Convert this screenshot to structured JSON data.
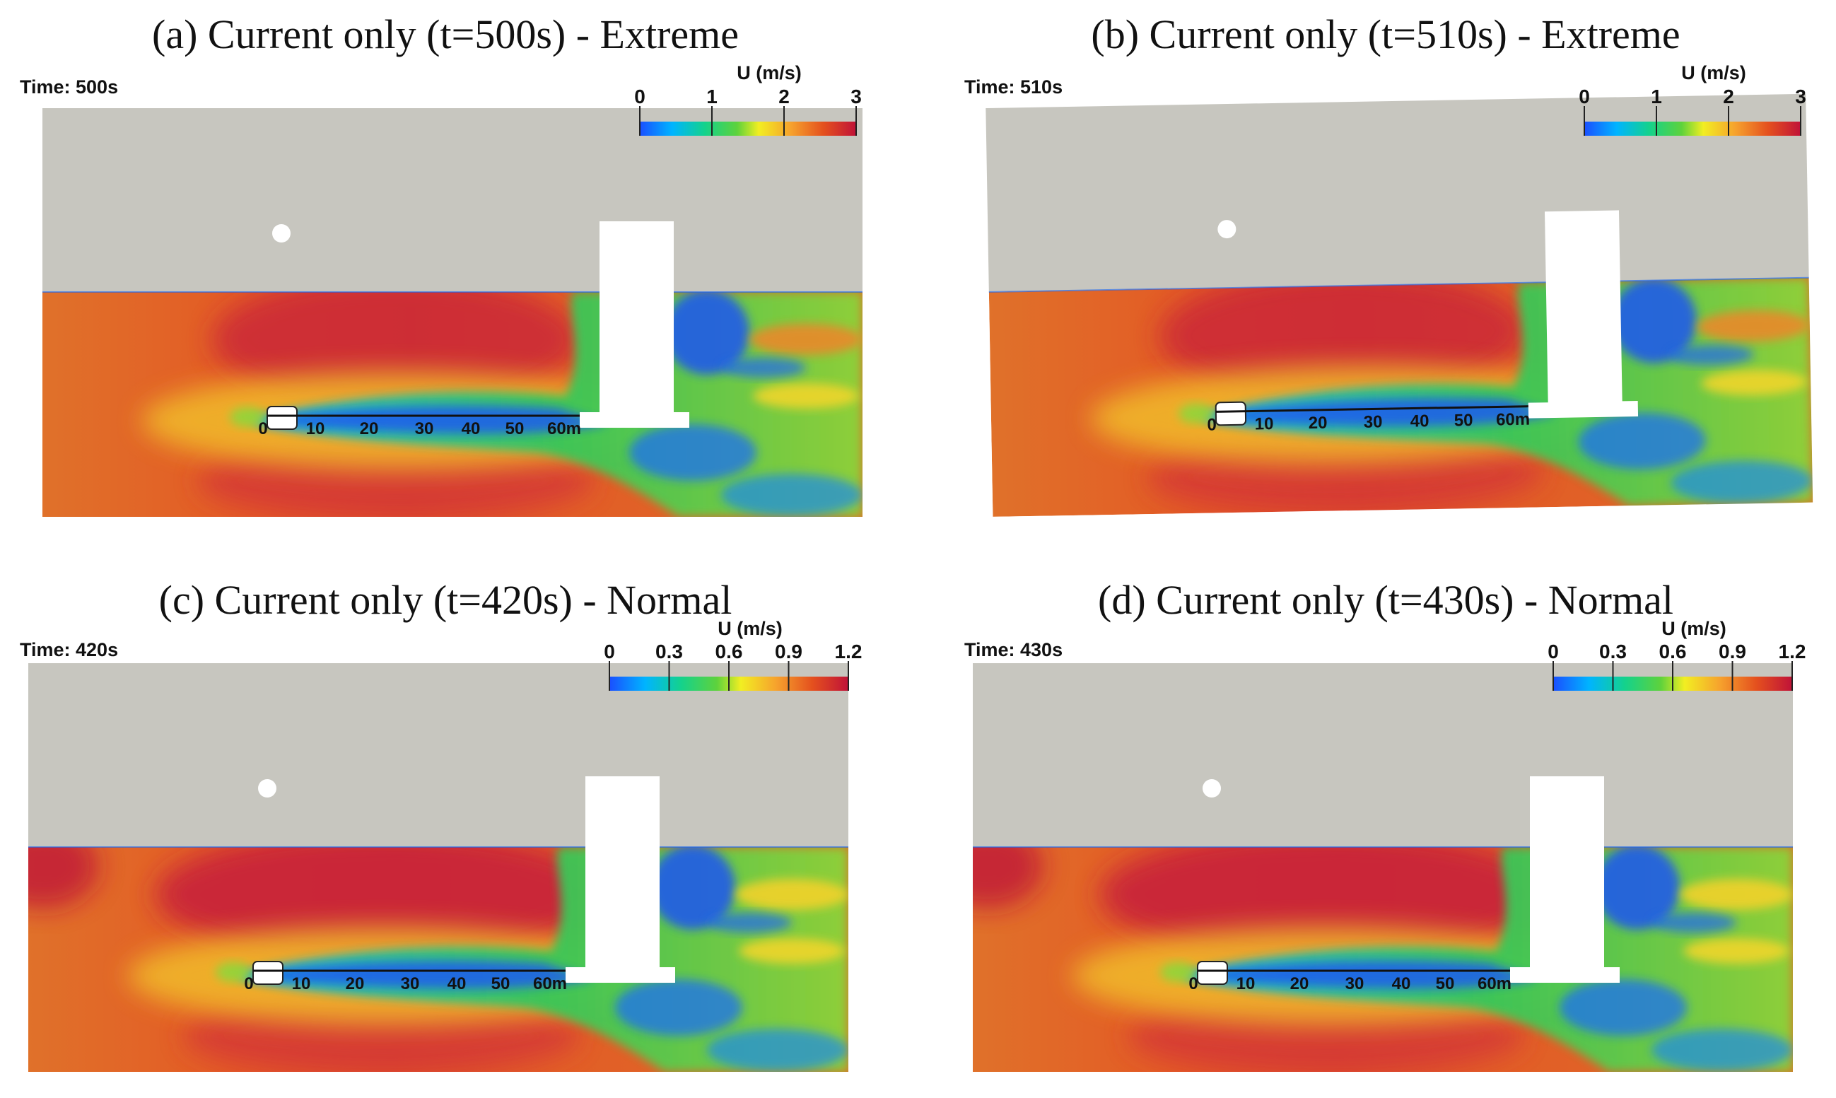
{
  "colors": {
    "air": "#c7c6bf",
    "structure": "#ffffff",
    "colormap": [
      "#1a4fff",
      "#00b4ff",
      "#14d28c",
      "#5ed23c",
      "#f2ee22",
      "#f6a12d",
      "#e4501e",
      "#c01238"
    ]
  },
  "panels": [
    {
      "id": "a",
      "title": "(a) Current only (t=500s) - Extreme",
      "time_label": "Time: 500s",
      "colorbar": {
        "title": "U (m/s)",
        "min": 0,
        "max": 3,
        "ticks": [
          "0",
          "1",
          "2",
          "3"
        ]
      },
      "ruler_ticks": [
        "0",
        "10",
        "20",
        "30",
        "40",
        "50",
        "60m"
      ],
      "tilt": 0
    },
    {
      "id": "b",
      "title": "(b) Current only (t=510s) - Extreme",
      "time_label": "Time: 510s",
      "colorbar": {
        "title": "U (m/s)",
        "min": 0,
        "max": 3,
        "ticks": [
          "0",
          "1",
          "2",
          "3"
        ]
      },
      "ruler_ticks": [
        "0",
        "10",
        "20",
        "30",
        "40",
        "50",
        "60m"
      ],
      "tilt": -1
    },
    {
      "id": "c",
      "title": "(c) Current only (t=420s) - Normal",
      "time_label": "Time: 420s",
      "colorbar": {
        "title": "U (m/s)",
        "min": 0,
        "max": 1.2,
        "ticks": [
          "0",
          "0.3",
          "0.6",
          "0.9",
          "1.2"
        ]
      },
      "ruler_ticks": [
        "0",
        "10",
        "20",
        "30",
        "40",
        "50",
        "60m"
      ],
      "tilt": 0
    },
    {
      "id": "d",
      "title": "(d) Current only (t=430s) - Normal",
      "time_label": "Time: 430s",
      "colorbar": {
        "title": "U (m/s)",
        "min": 0,
        "max": 1.2,
        "ticks": [
          "0",
          "0.3",
          "0.6",
          "0.9",
          "1.2"
        ]
      },
      "ruler_ticks": [
        "0",
        "10",
        "20",
        "30",
        "40",
        "50",
        "60m"
      ],
      "tilt": 0
    }
  ]
}
